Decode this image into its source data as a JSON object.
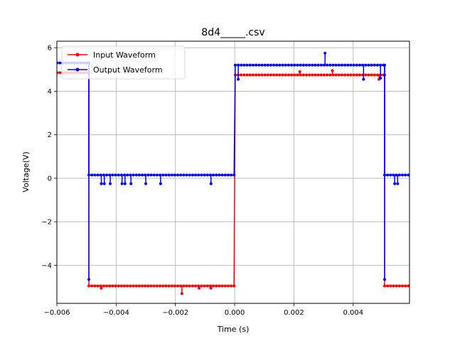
{
  "chart_data": {
    "type": "line",
    "title": "8d4_____.csv",
    "xlabel": "Time (s)",
    "ylabel": "Voltage(V)",
    "xlim": [
      -0.006,
      0.0059
    ],
    "ylim": [
      -5.75,
      6.3
    ],
    "x_ticks": [
      -0.006,
      -0.004,
      -0.002,
      0.0,
      0.002,
      0.004
    ],
    "x_tick_labels": [
      "−0.006",
      "−0.004",
      "−0.002",
      "0.000",
      "0.002",
      "0.004"
    ],
    "y_ticks": [
      -4,
      -2,
      0,
      2,
      4,
      6
    ],
    "y_tick_labels": [
      "−4",
      "−2",
      "0",
      "2",
      "4",
      "6"
    ],
    "grid": true,
    "legend_position": "top-left",
    "series": [
      {
        "name": "Input Waveform",
        "color": "#ff0000",
        "segments": [
          {
            "x_start": -0.0062,
            "x_end": -0.00492,
            "y": 4.85,
            "x_step": 0.0001
          },
          {
            "x_start": -0.00492,
            "x_end": -2e-05,
            "y": -4.95,
            "x_step": 0.0001
          },
          {
            "x_start": 2e-05,
            "x_end": 0.00506,
            "y": 4.75,
            "x_step": 0.0001
          },
          {
            "x_start": 0.00506,
            "x_end": 0.0062,
            "y": -4.95,
            "x_step": 0.0001
          }
        ],
        "outliers": [
          {
            "x": -0.00178,
            "y": -5.3
          },
          {
            "x": -0.0008,
            "y": -5.05
          },
          {
            "x": -0.0012,
            "y": -5.05
          },
          {
            "x": -0.0045,
            "y": -5.05
          },
          {
            "x": 0.00487,
            "y": 4.55
          },
          {
            "x": 0.0033,
            "y": 4.95
          },
          {
            "x": 0.0022,
            "y": 4.9
          }
        ]
      },
      {
        "name": "Output Waveform",
        "color": "#0000ff",
        "segments": [
          {
            "x_start": -0.0062,
            "x_end": -0.00492,
            "y": 5.3,
            "x_step": 0.0001
          },
          {
            "x_start": -0.00492,
            "x_end": -2e-05,
            "y": 0.15,
            "x_step": 0.0001
          },
          {
            "x_start": 2e-05,
            "x_end": 0.00506,
            "y": 5.2,
            "x_step": 0.0001
          },
          {
            "x_start": 0.00506,
            "x_end": 0.0062,
            "y": 0.15,
            "x_step": 0.0001
          }
        ],
        "outliers": [
          {
            "x": -0.00492,
            "y": -4.65
          },
          {
            "x": -0.0045,
            "y": -0.25
          },
          {
            "x": -0.0044,
            "y": -0.25
          },
          {
            "x": -0.0042,
            "y": -0.25
          },
          {
            "x": -0.0038,
            "y": -0.25
          },
          {
            "x": -0.0037,
            "y": -0.25
          },
          {
            "x": -0.0035,
            "y": -0.25
          },
          {
            "x": -0.003,
            "y": -0.25
          },
          {
            "x": -0.0025,
            "y": -0.25
          },
          {
            "x": -0.0008,
            "y": -0.25
          },
          {
            "x": 0.00012,
            "y": 4.55
          },
          {
            "x": 0.00305,
            "y": 5.75
          },
          {
            "x": 0.00435,
            "y": 4.55
          },
          {
            "x": 0.00492,
            "y": 4.6
          },
          {
            "x": 0.00506,
            "y": -4.65
          },
          {
            "x": 0.0054,
            "y": -0.25
          },
          {
            "x": 0.0055,
            "y": -0.25
          }
        ]
      }
    ]
  }
}
